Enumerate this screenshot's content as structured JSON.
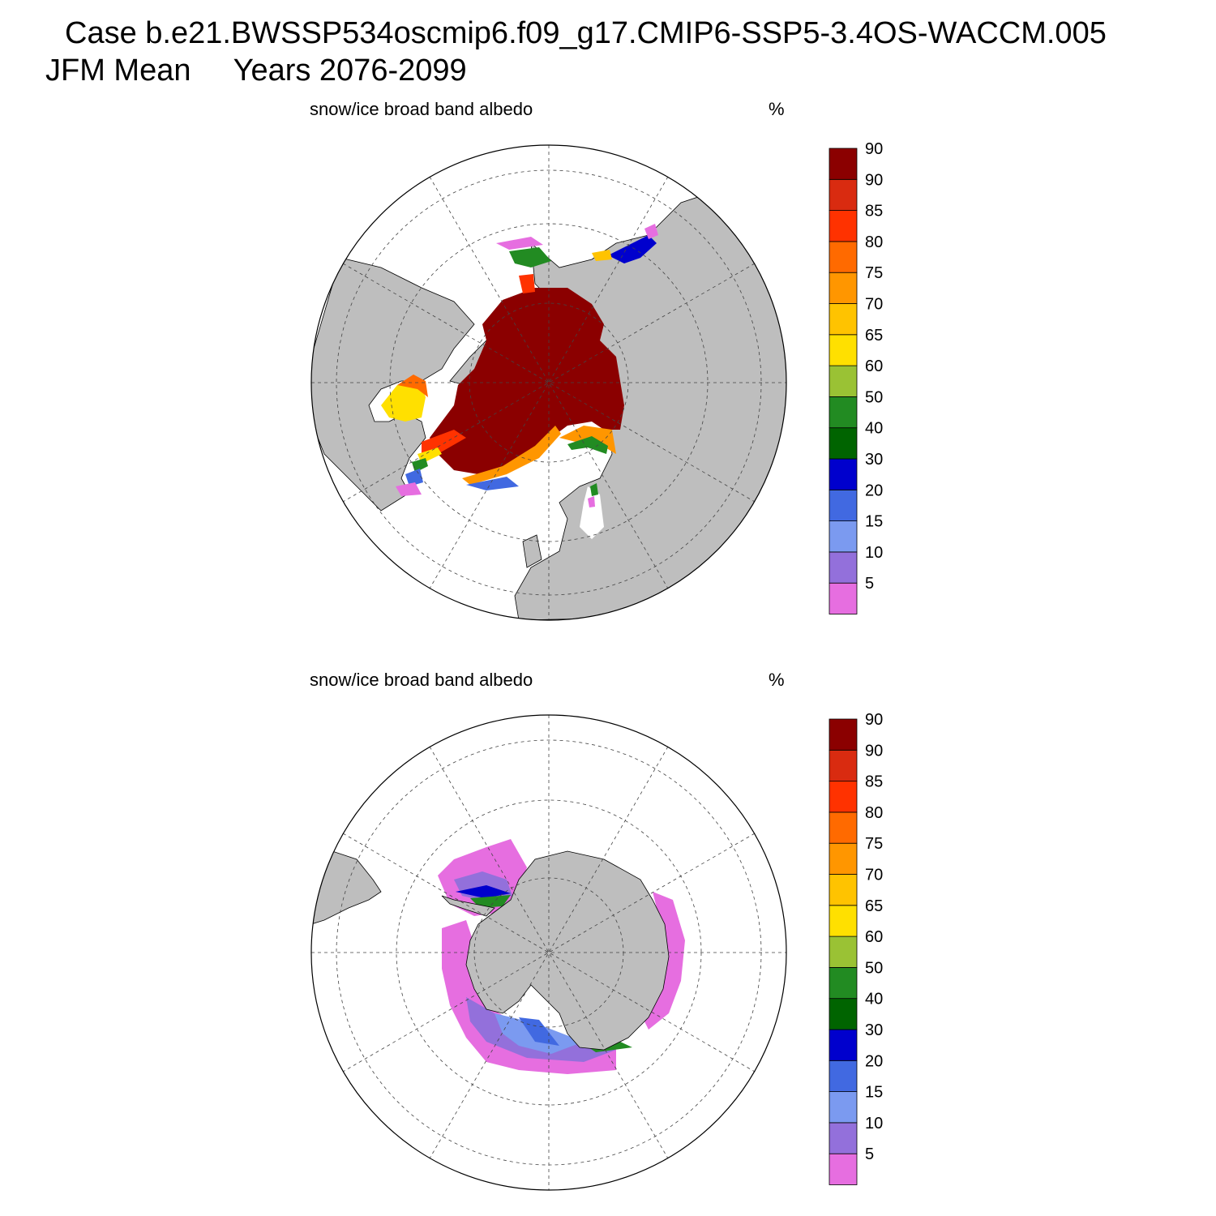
{
  "figure": {
    "title_line1": "Case b.e21.BWSSP534oscmip6.f09_g17.CMIP6-SSP5-3.4OS-WACCM.005",
    "title_line2": "JFM Mean     Years 2076-2099"
  },
  "panels": [
    {
      "id": "north",
      "variable_label": "snow/ice broad band albedo",
      "units": "%",
      "projection": "north-polar-stereographic",
      "land_color": "#bebebe"
    },
    {
      "id": "south",
      "variable_label": "snow/ice broad band albedo",
      "units": "%",
      "projection": "south-polar-stereographic",
      "land_color": "#bebebe"
    }
  ],
  "colorbar": {
    "tick_labels": [
      "5",
      "10",
      "15",
      "20",
      "30",
      "40",
      "50",
      "60",
      "65",
      "70",
      "75",
      "80",
      "85",
      "90",
      "90"
    ],
    "colors": [
      "#e66ee0",
      "#9370db",
      "#7b9af0",
      "#4169e1",
      "#0000cd",
      "#006400",
      "#228b22",
      "#9ac234",
      "#ffe000",
      "#ffc300",
      "#ff9600",
      "#ff6a00",
      "#ff3200",
      "#d92b10",
      "#8b0000"
    ]
  }
}
